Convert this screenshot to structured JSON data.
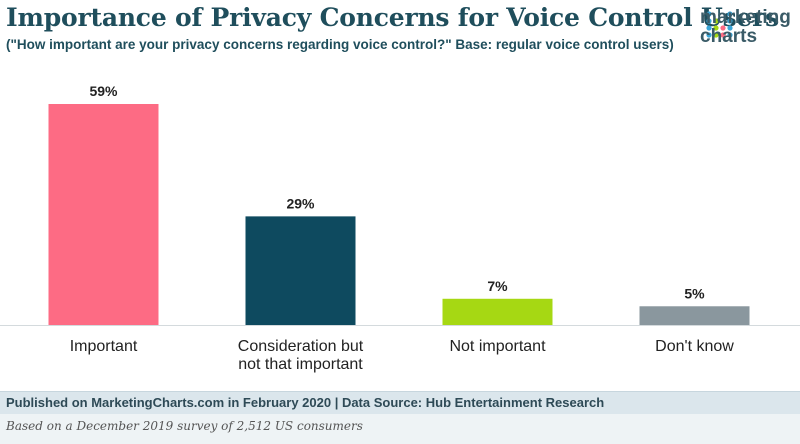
{
  "title": "Importance of Privacy Concerns for Voice Control Users",
  "subtitle": "(\"How important are your privacy concerns regarding voice control?\" Base: regular voice control users)",
  "logo": {
    "line1": "marketing",
    "line2": "charts"
  },
  "footer": {
    "published": "Published on MarketingCharts.com in February 2020 | Data Source: Hub Entertainment Research",
    "note": "Based on a December 2019 survey of 2,512 US consumers"
  },
  "colors": {
    "important": "#fd6b84",
    "consideration": "#0e4a5f",
    "not_important": "#a6d813",
    "dont_know": "#8a979e"
  },
  "chart_data": {
    "type": "bar",
    "categories": [
      "Important",
      "Consideration but not that important",
      "Not important",
      "Don't know"
    ],
    "category_lines": [
      [
        "Important"
      ],
      [
        "Consideration but",
        "not that important"
      ],
      [
        "Not important"
      ],
      [
        "Don't know"
      ]
    ],
    "values": [
      59,
      29,
      7,
      5
    ],
    "data_labels": [
      "59%",
      "29%",
      "7%",
      "5%"
    ],
    "bar_colors": [
      "#fd6b84",
      "#0e4a5f",
      "#a6d813",
      "#8a979e"
    ],
    "ylim": [
      0,
      59
    ],
    "grid": false,
    "legend": "none",
    "title": "Importance of Privacy Concerns for Voice Control Users",
    "xlabel": "",
    "ylabel": ""
  }
}
